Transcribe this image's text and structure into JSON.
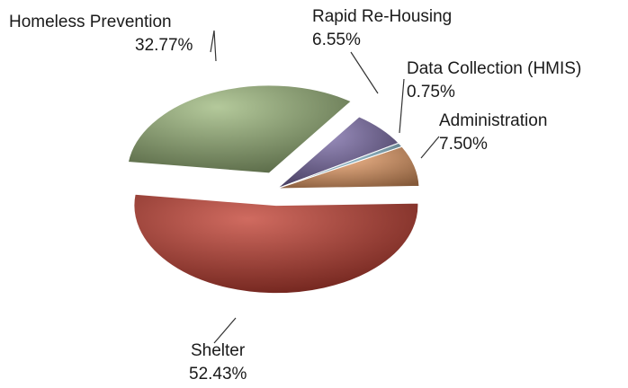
{
  "chart_data": {
    "type": "pie",
    "slices": [
      {
        "label": "Shelter",
        "value": 52.43,
        "value_label": "52.43%",
        "color": "#c0392b",
        "explode": true
      },
      {
        "label": "Homeless Prevention",
        "value": 32.77,
        "value_label": "32.77%",
        "color": "#9bb77a",
        "explode": true
      },
      {
        "label": "Rapid Re-Housing",
        "value": 6.55,
        "value_label": "6.55%",
        "color": "#7a6aa8",
        "explode": false
      },
      {
        "label": "Data Collection (HMIS)",
        "value": 0.75,
        "value_label": "0.75%",
        "color": "#8fc1d6",
        "explode": false
      },
      {
        "label": "Administration",
        "value": 7.5,
        "value_label": "7.50%",
        "color": "#f2a36a",
        "explode": false
      }
    ],
    "legend": "none",
    "start_angle_deg": 180,
    "direction": "clockwise"
  }
}
